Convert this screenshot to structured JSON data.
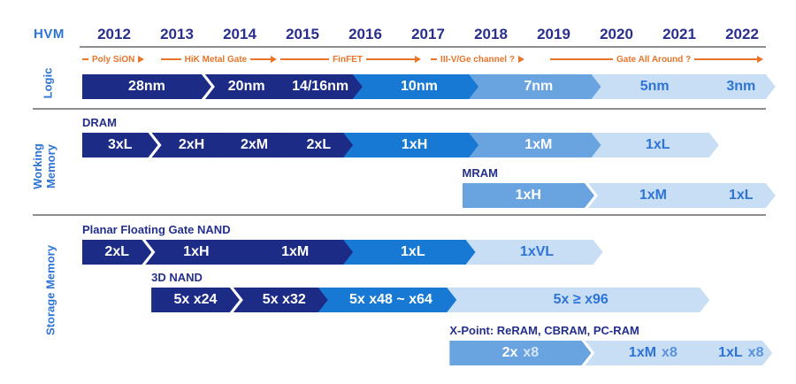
{
  "hvm_label": "HVM",
  "colors": {
    "navy": "#1C2B86",
    "bright": "#1779D4",
    "mid": "#69A3E0",
    "light": "#C8DEF4",
    "orange": "#E8752A",
    "year_text": "#2A2F8D",
    "label_blue": "#2E74D5",
    "row_label_navy": "#242F8B",
    "divider_gray": "#8E8E8E",
    "white": "#FFFFFF"
  },
  "chart_data": {
    "type": "table",
    "subtype": "roadmap-gantt-timeline",
    "title": "HVM",
    "x_axis": {
      "years": [
        "2012",
        "2013",
        "2014",
        "2015",
        "2016",
        "2017",
        "2018",
        "2019",
        "2020",
        "2021",
        "2022"
      ],
      "range": [
        2012,
        2022.9
      ],
      "grid": false
    },
    "logic_annotations": [
      {
        "label": "Poly SiON",
        "from": 2012.0,
        "to": 2013.25,
        "lead": "dash",
        "trail": "arrow"
      },
      {
        "label": "HiK Metal Gate",
        "from": 2013.25,
        "to": 2015.1,
        "lead": "line",
        "trail": "line-arrow"
      },
      {
        "label": "FinFET",
        "from": 2015.15,
        "to": 2017.4,
        "lead": "line",
        "trail": "line-arrow"
      },
      {
        "label": "III-V/Ge channel ?",
        "from": 2017.55,
        "to": 2019.3,
        "lead": "dash",
        "trail": "arrow"
      },
      {
        "label": "Gate All Around ?",
        "from": 2019.45,
        "to": 2022.85,
        "lead": "line",
        "trail": "line-arrow"
      }
    ],
    "sections": [
      {
        "name": "Logic",
        "rows": [
          {
            "label": "",
            "segments": [
              {
                "label": "28nm",
                "from": 2012.0,
                "to": 2013.9,
                "tone": "navy"
              },
              {
                "label": "20nm",
                "from": 2013.9,
                "to": 2014.95,
                "tone": "navy"
              },
              {
                "label": "14/16nm",
                "from": 2014.95,
                "to": 2016.25,
                "tone": "navy"
              },
              {
                "label": "10nm",
                "from": 2016.25,
                "to": 2018.1,
                "tone": "bright"
              },
              {
                "label": "7nm",
                "from": 2018.1,
                "to": 2020.05,
                "tone": "mid"
              },
              {
                "label": "5nm",
                "from": 2020.05,
                "to": 2021.8,
                "tone": "light"
              },
              {
                "label": "3nm",
                "from": 2021.8,
                "to": 2022.8,
                "tone": "light"
              }
            ]
          }
        ]
      },
      {
        "name": "Working Memory",
        "rows": [
          {
            "label": "DRAM",
            "segments": [
              {
                "label": "3xL",
                "from": 2012.0,
                "to": 2013.05,
                "tone": "navy"
              },
              {
                "label": "2xH",
                "from": 2013.05,
                "to": 2014.05,
                "tone": "navy"
              },
              {
                "label": "2xM",
                "from": 2014.05,
                "to": 2015.05,
                "tone": "navy"
              },
              {
                "label": "2xL",
                "from": 2015.05,
                "to": 2016.1,
                "tone": "navy"
              },
              {
                "label": "1xH",
                "from": 2016.1,
                "to": 2018.1,
                "tone": "bright"
              },
              {
                "label": "1xM",
                "from": 2018.1,
                "to": 2020.05,
                "tone": "mid"
              },
              {
                "label": "1xL",
                "from": 2020.05,
                "to": 2021.9,
                "tone": "light"
              }
            ]
          },
          {
            "label": "MRAM",
            "segments": [
              {
                "label": "1xH",
                "from": 2018.05,
                "to": 2020.0,
                "tone": "mid"
              },
              {
                "label": "1xM",
                "from": 2020.0,
                "to": 2021.8,
                "tone": "light"
              },
              {
                "label": "1xL",
                "from": 2021.8,
                "to": 2022.8,
                "tone": "light"
              }
            ]
          }
        ]
      },
      {
        "name": "Storage Memory",
        "rows": [
          {
            "label": "Planar Floating Gate NAND",
            "segments": [
              {
                "label": "2xL",
                "from": 2012.0,
                "to": 2012.95,
                "tone": "navy"
              },
              {
                "label": "1xH",
                "from": 2012.95,
                "to": 2014.3,
                "tone": "navy"
              },
              {
                "label": "1xM",
                "from": 2014.3,
                "to": 2016.1,
                "tone": "navy"
              },
              {
                "label": "1xL",
                "from": 2016.1,
                "to": 2018.05,
                "tone": "bright"
              },
              {
                "label": "1xVL",
                "from": 2018.05,
                "to": 2020.05,
                "tone": "light"
              }
            ]
          },
          {
            "label": "3D NAND",
            "segments": [
              {
                "label": "5x x24",
                "from": 2013.1,
                "to": 2014.35,
                "tone": "navy"
              },
              {
                "label": "5x x32",
                "from": 2014.35,
                "to": 2015.7,
                "tone": "navy"
              },
              {
                "label": "5x x48 ~ x64",
                "from": 2015.7,
                "to": 2017.75,
                "tone": "bright"
              },
              {
                "label": "5x ≥ x96",
                "from": 2017.75,
                "to": 2021.75,
                "tone": "light"
              }
            ]
          },
          {
            "label": "X-Point: ReRAM, CBRAM, PC-RAM",
            "segments": [
              {
                "label": "2x x8",
                "parts": [
                  {
                    "t": "2x"
                  },
                  {
                    "t": "x8",
                    "dim": true
                  }
                ],
                "from": 2017.85,
                "to": 2019.95,
                "tone": "mid"
              },
              {
                "label": "1xM x8",
                "parts": [
                  {
                    "t": "1xM"
                  },
                  {
                    "t": "x8",
                    "dim": true
                  }
                ],
                "from": 2019.95,
                "to": 2021.85,
                "tone": "light"
              },
              {
                "label": "1xL x8",
                "parts": [
                  {
                    "t": "1xL"
                  },
                  {
                    "t": "x8",
                    "dim": true
                  }
                ],
                "from": 2021.85,
                "to": 2022.75,
                "tone": "light"
              }
            ]
          }
        ]
      }
    ]
  }
}
